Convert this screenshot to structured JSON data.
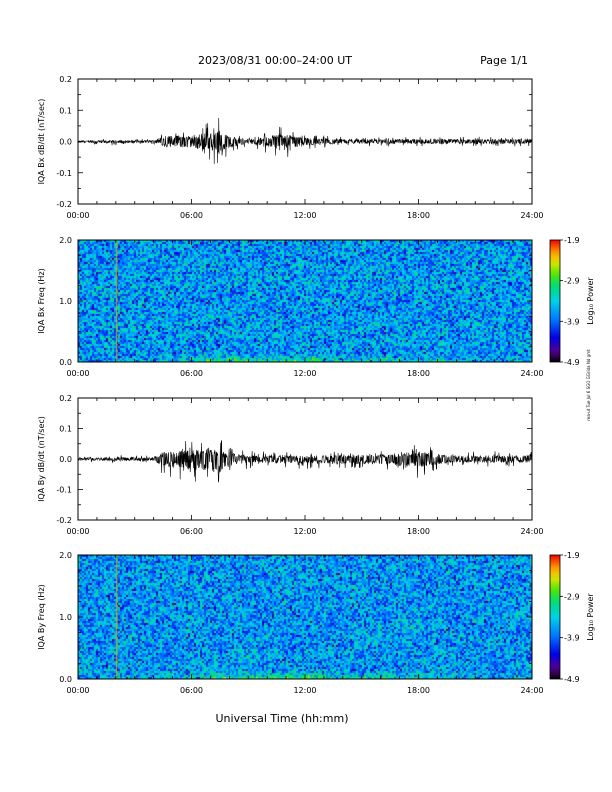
{
  "header": {
    "title": "2023/08/31  00:00–24:00 UT",
    "page": "Page 1/1"
  },
  "side_note": "rea-ut Tue Jul 6 SGO GGrida Nd gmt",
  "chart_data": [
    {
      "type": "line",
      "ylabel": "IQA Bx dB/dt (nT/sec)",
      "xlabel": "",
      "x_range_hours": [
        0,
        24
      ],
      "x_ticks": [
        "00:00",
        "06:00",
        "12:00",
        "18:00",
        "24:00"
      ],
      "ylim": [
        -0.2,
        0.2
      ],
      "y_ticks": [
        "0.2",
        "0.1",
        "0.0",
        "-0.1",
        "-0.2"
      ],
      "envelope": {
        "hours": [
          0,
          2,
          4,
          4.5,
          6,
          7,
          7.5,
          8,
          9,
          10,
          10.7,
          11,
          12,
          13,
          14,
          16,
          18,
          20,
          22,
          24
        ],
        "max": [
          0.004,
          0.006,
          0.006,
          0.03,
          0.035,
          0.05,
          0.06,
          0.03,
          0.01,
          0.025,
          0.045,
          0.04,
          0.02,
          0.015,
          0.012,
          0.012,
          0.012,
          0.012,
          0.012,
          0.012
        ],
        "min": [
          -0.004,
          -0.01,
          -0.006,
          -0.03,
          -0.035,
          -0.05,
          -0.07,
          -0.035,
          -0.01,
          -0.03,
          -0.05,
          -0.045,
          -0.02,
          -0.015,
          -0.012,
          -0.012,
          -0.012,
          -0.012,
          -0.012,
          -0.012
        ]
      }
    },
    {
      "type": "heatmap",
      "ylabel": "IQA Bx Freq (Hz)",
      "x_range_hours": [
        0,
        24
      ],
      "x_ticks": [
        "00:00",
        "06:00",
        "12:00",
        "18:00",
        "24:00"
      ],
      "ylim": [
        0,
        2.0
      ],
      "y_ticks": [
        "2.0",
        "1.0",
        "0.0"
      ],
      "colorbar": {
        "label": "Log₁₀ Power",
        "ticks": [
          "-1.9",
          "-2.9",
          "-3.9",
          "-4.9"
        ],
        "range": [
          -4.9,
          -1.9
        ]
      },
      "features": [
        {
          "kind": "vertical-line",
          "hour": 2.0,
          "color": "#d4a000"
        },
        {
          "kind": "low-frequency-enhancement",
          "hours": [
            4.3,
            20
          ],
          "max_freq": 0.15
        }
      ]
    },
    {
      "type": "line",
      "ylabel": "IQA By dB/dt (nT/sec)",
      "xlabel": "",
      "x_range_hours": [
        0,
        24
      ],
      "x_ticks": [
        "00:00",
        "06:00",
        "12:00",
        "18:00",
        "24:00"
      ],
      "ylim": [
        -0.2,
        0.2
      ],
      "y_ticks": [
        "0.2",
        "0.1",
        "0.0",
        "-0.1",
        "-0.2"
      ],
      "envelope": {
        "hours": [
          0,
          2,
          4,
          4.5,
          6,
          7,
          7.5,
          8,
          9,
          10,
          12,
          14,
          16,
          17,
          18,
          19,
          20,
          22,
          24
        ],
        "max": [
          0.005,
          0.01,
          0.008,
          0.04,
          0.05,
          0.065,
          0.05,
          0.03,
          0.02,
          0.02,
          0.02,
          0.02,
          0.025,
          0.035,
          0.045,
          0.03,
          0.02,
          0.02,
          0.02
        ],
        "min": [
          -0.005,
          -0.01,
          -0.008,
          -0.04,
          -0.06,
          -0.07,
          -0.08,
          -0.04,
          -0.025,
          -0.025,
          -0.025,
          -0.025,
          -0.03,
          -0.04,
          -0.05,
          -0.03,
          -0.02,
          -0.02,
          -0.02
        ]
      }
    },
    {
      "type": "heatmap",
      "ylabel": "IQA By Freq (Hz)",
      "x_range_hours": [
        0,
        24
      ],
      "x_ticks": [
        "00:00",
        "06:00",
        "12:00",
        "18:00",
        "24:00"
      ],
      "ylim": [
        0,
        2.0
      ],
      "y_ticks": [
        "2.0",
        "1.0",
        "0.0"
      ],
      "colorbar": {
        "label": "Log₁₀ Power",
        "ticks": [
          "-1.9",
          "-2.9",
          "-3.9",
          "-4.9"
        ],
        "range": [
          -4.9,
          -1.9
        ]
      },
      "features": [
        {
          "kind": "vertical-line",
          "hour": 2.0,
          "color": "#d4a000"
        },
        {
          "kind": "low-frequency-enhancement",
          "hours": [
            4.3,
            20
          ],
          "max_freq": 0.15
        }
      ]
    }
  ],
  "bottom_axis_label": "Universal Time (hh:mm)"
}
